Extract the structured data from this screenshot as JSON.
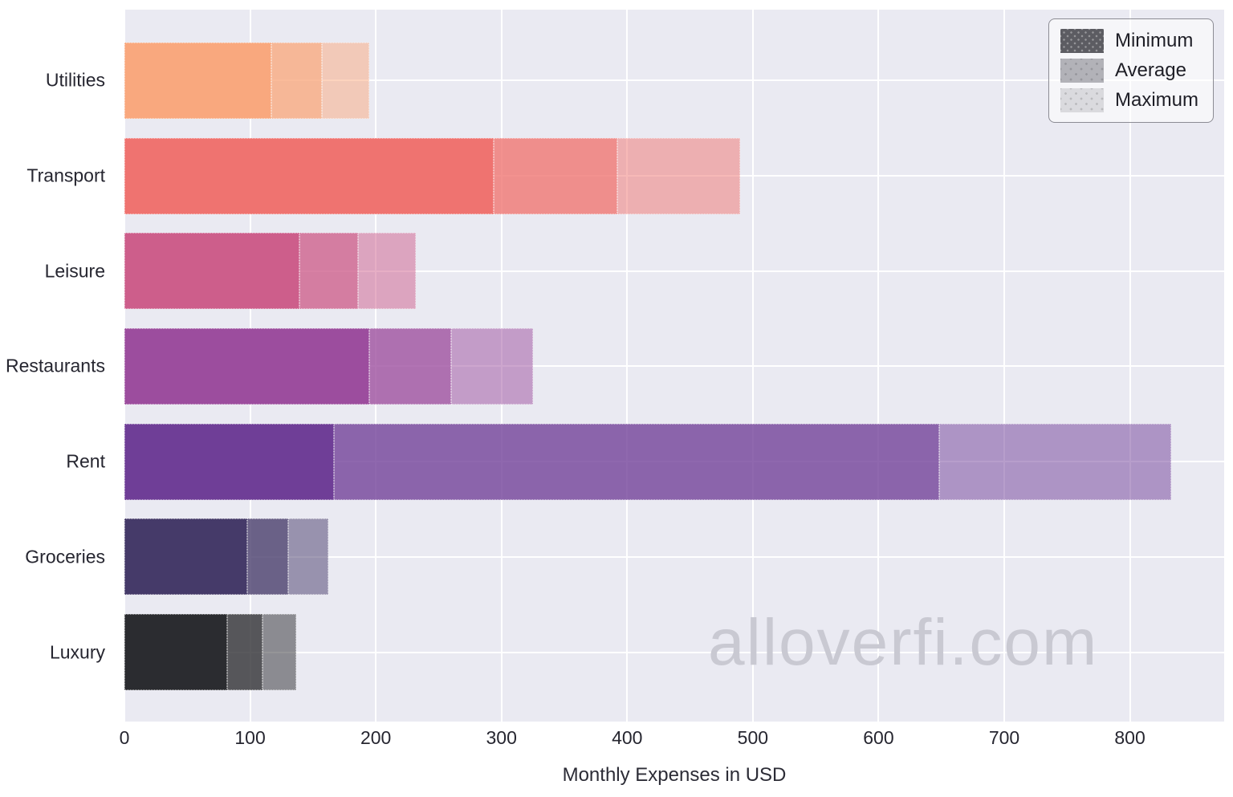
{
  "chart_data": {
    "type": "bar",
    "orientation": "horizontal",
    "xlabel": "Monthly Expenses in USD",
    "ylabel": "",
    "categories": [
      "Utilities",
      "Transport",
      "Leisure",
      "Restaurants",
      "Rent",
      "Groceries",
      "Luxury"
    ],
    "series": [
      {
        "name": "Minimum",
        "values": [
          117,
          294,
          139,
          195,
          167,
          98,
          82
        ]
      },
      {
        "name": "Average",
        "values": [
          157,
          392,
          186,
          260,
          648,
          130,
          110
        ]
      },
      {
        "name": "Maximum",
        "values": [
          195,
          490,
          232,
          325,
          833,
          162,
          137
        ]
      }
    ],
    "bar_colors": [
      "#f9a87e",
      "#ef7370",
      "#cd5e8b",
      "#9c4d9e",
      "#6f3e97",
      "#453a69",
      "#2b2c30"
    ],
    "x_ticks": [
      0,
      100,
      200,
      300,
      400,
      500,
      600,
      700,
      800
    ],
    "xlim": [
      0,
      875
    ],
    "grid": true,
    "legend_position": "upper right"
  },
  "legend": {
    "swatch_colors": [
      "#5c5c62",
      "#b2b2b8",
      "#dadade"
    ]
  },
  "watermark": {
    "text": "alloverfi.com",
    "color": "#c9c9d2"
  },
  "colors": {
    "plot_bg": "#eaeaf2",
    "grid": "#ffffff",
    "tick_text": "#262630"
  }
}
